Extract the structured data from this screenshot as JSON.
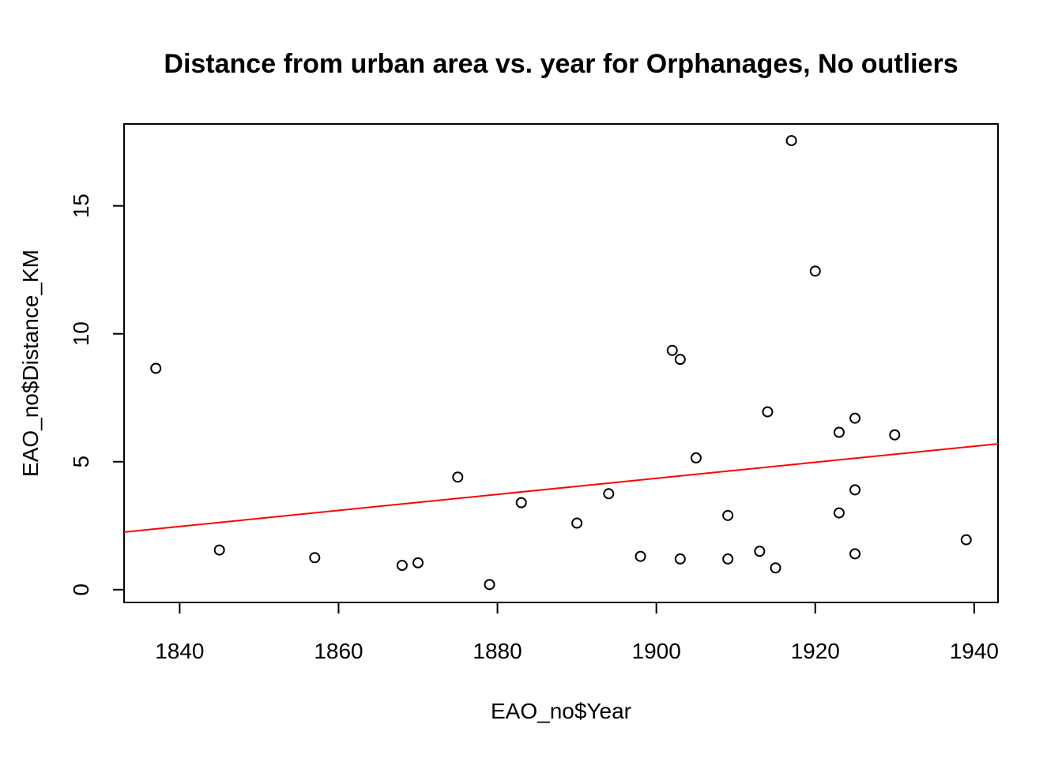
{
  "chart_data": {
    "type": "scatter",
    "title": "Distance from urban area vs. year for Orphanages, No outliers",
    "xlabel": "EAO_no$Year",
    "ylabel": "EAO_no$Distance_KM",
    "xlim": [
      1833,
      1943
    ],
    "ylim": [
      -0.5,
      18.2
    ],
    "x_ticks": [
      1840,
      1860,
      1880,
      1900,
      1920,
      1940
    ],
    "x_tick_labels": [
      "1840",
      "1860",
      "1880",
      "1900",
      "1920",
      "1940"
    ],
    "y_ticks": [
      0,
      5,
      10,
      15
    ],
    "y_tick_labels": [
      "0",
      "5",
      "10",
      "15"
    ],
    "grid": false,
    "points": [
      {
        "x": 1837,
        "y": 8.65
      },
      {
        "x": 1845,
        "y": 1.55
      },
      {
        "x": 1857,
        "y": 1.25
      },
      {
        "x": 1868,
        "y": 0.95
      },
      {
        "x": 1870,
        "y": 1.05
      },
      {
        "x": 1875,
        "y": 4.4
      },
      {
        "x": 1879,
        "y": 0.2
      },
      {
        "x": 1883,
        "y": 3.4
      },
      {
        "x": 1890,
        "y": 2.6
      },
      {
        "x": 1894,
        "y": 3.75
      },
      {
        "x": 1898,
        "y": 1.3
      },
      {
        "x": 1902,
        "y": 9.35
      },
      {
        "x": 1903,
        "y": 9.0
      },
      {
        "x": 1903,
        "y": 1.2
      },
      {
        "x": 1905,
        "y": 5.15
      },
      {
        "x": 1909,
        "y": 2.9
      },
      {
        "x": 1909,
        "y": 1.2
      },
      {
        "x": 1913,
        "y": 1.5
      },
      {
        "x": 1914,
        "y": 6.95
      },
      {
        "x": 1915,
        "y": 0.85
      },
      {
        "x": 1917,
        "y": 17.55
      },
      {
        "x": 1920,
        "y": 12.45
      },
      {
        "x": 1923,
        "y": 6.15
      },
      {
        "x": 1923,
        "y": 3.0
      },
      {
        "x": 1925,
        "y": 6.7
      },
      {
        "x": 1925,
        "y": 3.9
      },
      {
        "x": 1925,
        "y": 1.4
      },
      {
        "x": 1930,
        "y": 6.05
      },
      {
        "x": 1939,
        "y": 1.95
      }
    ],
    "fit_line": {
      "x": [
        1833,
        1943
      ],
      "y": [
        2.25,
        5.7
      ],
      "color": "#ff0000"
    },
    "point_color": "#000000"
  }
}
